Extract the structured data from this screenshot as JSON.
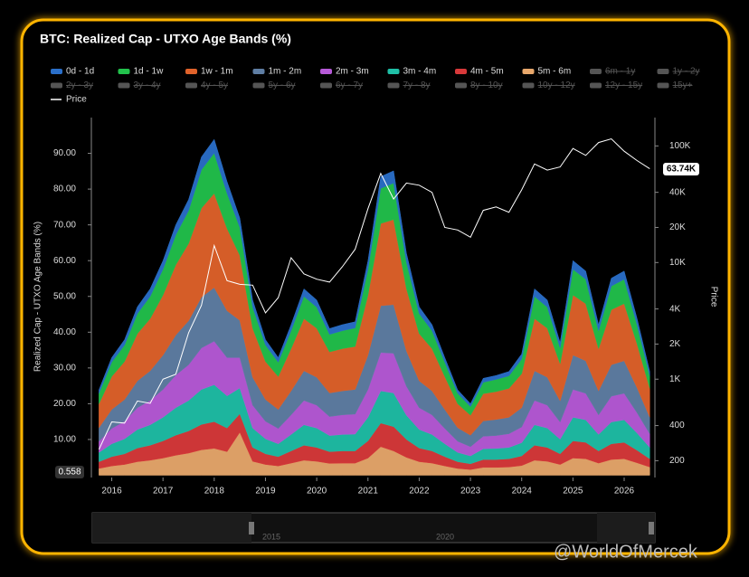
{
  "chart_data": {
    "type": "stacked-area",
    "title": "BTC: Realized Cap - UTXO Age Bands (%)",
    "y_label": "Realized Cap - UTXO Age Bands (%)",
    "y2_label": "Price",
    "y2_scale": "log",
    "x": [
      2015.75,
      2016,
      2016.25,
      2016.5,
      2016.75,
      2017,
      2017.25,
      2017.5,
      2017.75,
      2018,
      2018.25,
      2018.5,
      2018.75,
      2019,
      2019.25,
      2019.5,
      2019.75,
      2020,
      2020.25,
      2020.5,
      2020.75,
      2021,
      2021.25,
      2021.5,
      2021.75,
      2022,
      2022.25,
      2022.5,
      2022.75,
      2023,
      2023.25,
      2023.5,
      2023.75,
      2024,
      2024.25,
      2024.5,
      2024.75,
      2025,
      2025.25,
      2025.5,
      2025.75,
      2026,
      2026.25,
      2026.5
    ],
    "xlim": [
      2015.62,
      2026.6
    ],
    "xticks": [
      2016,
      2017,
      2018,
      2019,
      2020,
      2021,
      2022,
      2023,
      2024,
      2025,
      2026
    ],
    "ylim": [
      0,
      100
    ],
    "yticks": [
      {
        "value": 10,
        "label": "10.00"
      },
      {
        "value": 20,
        "label": "20.00"
      },
      {
        "value": 30,
        "label": "30.00"
      },
      {
        "value": 40,
        "label": "40.00"
      },
      {
        "value": 50,
        "label": "50.00"
      },
      {
        "value": 60,
        "label": "60.00"
      },
      {
        "value": 70,
        "label": "70.00"
      },
      {
        "value": 80,
        "label": "80.00"
      },
      {
        "value": 90,
        "label": "90.00"
      }
    ],
    "y2lim": [
      150,
      175000
    ],
    "y2ticks": [
      200,
      400,
      {
        "value": 1000,
        "label": "1K"
      },
      {
        "value": 2000,
        "label": "2K"
      },
      {
        "value": 4000,
        "label": "4K"
      },
      {
        "value": 10000,
        "label": "10K"
      },
      {
        "value": 20000,
        "label": "20K"
      },
      {
        "value": 40000,
        "label": "40K"
      },
      {
        "value": 100000,
        "label": "100K"
      }
    ],
    "last_labels": {
      "y": "0.558",
      "y2": "63.74K"
    },
    "series": [
      {
        "name": "0d - 1d",
        "color": "#2a6fc9",
        "values": [
          1.0,
          1.3,
          1.5,
          1.9,
          2.1,
          2.4,
          2.8,
          3.1,
          3.6,
          3.8,
          3.3,
          2.6,
          2.0,
          1.5,
          1.3,
          1.7,
          2.1,
          2.0,
          1.6,
          1.7,
          1.7,
          2.4,
          3.3,
          3.4,
          2.5,
          1.9,
          1.7,
          1.3,
          1.0,
          0.8,
          1.1,
          1.1,
          1.2,
          1.4,
          2.1,
          2.0,
          1.5,
          2.4,
          2.3,
          1.7,
          2.2,
          2.3,
          1.8,
          1.2
        ]
      },
      {
        "name": "1d - 1w",
        "color": "#22c24c",
        "values": [
          2.9,
          4.0,
          4.6,
          5.6,
          6.2,
          7.2,
          8.4,
          9.2,
          10.7,
          11.3,
          9.8,
          7.8,
          5.9,
          4.6,
          4.0,
          5.0,
          6.2,
          5.9,
          4.9,
          5.0,
          5.2,
          7.2,
          9.8,
          10.2,
          7.4,
          5.6,
          5.0,
          4.0,
          2.9,
          2.4,
          3.2,
          3.4,
          3.5,
          4.1,
          6.2,
          5.9,
          4.4,
          7.2,
          6.8,
          5.0,
          6.6,
          6.8,
          5.3,
          3.5
        ]
      },
      {
        "name": "1w - 1m",
        "color": "#e0622a",
        "values": [
          6.7,
          9.2,
          10.6,
          13.2,
          14.6,
          16.8,
          19.6,
          21.6,
          24.9,
          26.3,
          23.0,
          18.2,
          13.7,
          10.6,
          9.2,
          11.8,
          14.6,
          13.7,
          11.5,
          11.8,
          12.0,
          16.8,
          23.0,
          23.8,
          17.4,
          13.2,
          11.8,
          9.2,
          6.7,
          5.6,
          7.6,
          7.8,
          8.1,
          9.5,
          14.6,
          13.7,
          10.4,
          16.8,
          16.0,
          11.8,
          15.4,
          16.0,
          12.3,
          8.1
        ]
      },
      {
        "name": "1m - 2m",
        "color": "#5f7ea4",
        "values": [
          3.8,
          5.3,
          6.1,
          7.5,
          8.3,
          9.6,
          11.2,
          12.3,
          14.2,
          15.0,
          13.1,
          10.4,
          7.8,
          6.1,
          5.3,
          6.7,
          8.3,
          7.8,
          6.6,
          6.7,
          6.9,
          9.6,
          13.1,
          13.6,
          9.9,
          7.5,
          6.7,
          5.3,
          3.8,
          3.2,
          4.3,
          4.5,
          4.6,
          5.4,
          8.3,
          7.8,
          5.9,
          9.6,
          9.1,
          6.7,
          8.8,
          9.1,
          7.0,
          4.6
        ]
      },
      {
        "name": "2m - 3m",
        "color": "#b75ad8",
        "values": [
          3.1,
          4.3,
          4.9,
          6.1,
          6.8,
          7.8,
          9.1,
          10.0,
          11.6,
          12.2,
          10.7,
          8.5,
          6.4,
          4.9,
          4.3,
          5.5,
          6.8,
          6.4,
          5.3,
          5.5,
          5.6,
          7.8,
          10.7,
          11.1,
          8.1,
          6.1,
          5.5,
          4.3,
          3.1,
          2.6,
          3.5,
          3.6,
          3.8,
          4.4,
          6.8,
          6.4,
          4.8,
          7.8,
          7.4,
          5.5,
          7.2,
          7.4,
          5.7,
          3.8
        ]
      },
      {
        "name": "3m - 4m",
        "color": "#1fbfa6",
        "values": [
          2.6,
          3.6,
          4.2,
          5.2,
          5.7,
          6.6,
          7.7,
          8.5,
          9.8,
          10.3,
          9.0,
          7.2,
          5.4,
          4.2,
          3.6,
          4.6,
          5.7,
          5.4,
          4.5,
          4.6,
          4.7,
          6.6,
          9.0,
          9.4,
          6.8,
          5.2,
          4.6,
          3.6,
          2.6,
          2.2,
          3.0,
          3.1,
          3.2,
          3.7,
          5.7,
          5.4,
          4.1,
          6.6,
          6.3,
          4.6,
          6.1,
          6.3,
          4.8,
          3.2
        ]
      },
      {
        "name": "4m - 5m",
        "color": "#d8393a",
        "values": [
          1.9,
          2.6,
          3.0,
          3.8,
          4.2,
          4.8,
          5.6,
          6.2,
          7.1,
          7.5,
          6.6,
          5.2,
          3.9,
          3.0,
          2.6,
          3.4,
          4.2,
          3.9,
          3.3,
          3.4,
          3.4,
          4.8,
          6.6,
          6.8,
          5.0,
          3.8,
          3.4,
          2.6,
          1.9,
          1.6,
          2.2,
          2.2,
          2.3,
          2.7,
          4.2,
          3.9,
          3.0,
          4.8,
          4.6,
          3.4,
          4.4,
          4.6,
          3.5,
          2.3
        ]
      },
      {
        "name": "5m - 6m",
        "color": "#e8a86c",
        "values": [
          1.9,
          2.6,
          3.0,
          3.8,
          4.2,
          4.8,
          5.6,
          6.2,
          7.1,
          7.5,
          6.6,
          12.0,
          3.9,
          3.0,
          2.6,
          3.4,
          4.2,
          3.9,
          3.3,
          3.4,
          3.4,
          4.8,
          8.0,
          6.8,
          5.0,
          3.8,
          3.4,
          2.6,
          1.9,
          1.6,
          2.2,
          2.2,
          2.3,
          2.7,
          4.2,
          3.9,
          3.0,
          4.8,
          4.6,
          3.4,
          4.4,
          4.6,
          3.5,
          2.3
        ]
      },
      {
        "name": "Price",
        "color": "#ffffff",
        "axis": "y2",
        "values": [
          250,
          430,
          420,
          650,
          620,
          1000,
          1100,
          2500,
          4300,
          14000,
          7000,
          6500,
          6400,
          3700,
          5000,
          11000,
          8000,
          7200,
          6800,
          9200,
          13000,
          29000,
          58000,
          35000,
          48000,
          46000,
          40000,
          20000,
          19000,
          16500,
          28000,
          30000,
          27000,
          42000,
          70000,
          62000,
          66000,
          95000,
          83000,
          107000,
          115000,
          90000,
          75000,
          63740
        ]
      }
    ],
    "hidden_series": [
      "6m - 1y",
      "1y - 2y",
      "2y - 3y",
      "3y - 4y",
      "4y - 5y",
      "5y - 6y",
      "6y - 7y",
      "7y - 8y",
      "8y - 10y",
      "10y - 12y",
      "12y - 15y",
      "15y+"
    ],
    "navigator_labels": [
      "2015",
      "2020"
    ],
    "watermark": "@WorldOfMercek"
  }
}
